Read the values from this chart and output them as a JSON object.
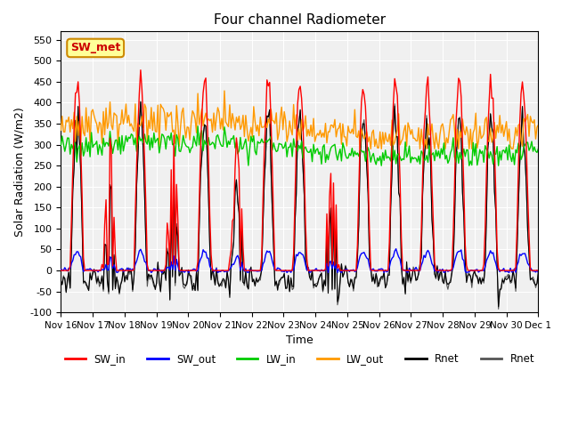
{
  "title": "Four channel Radiometer",
  "xlabel": "Time",
  "ylabel": "Solar Radiation (W/m2)",
  "ylim": [
    -100,
    570
  ],
  "n_days": 15,
  "x_tick_labels": [
    "Nov 16",
    "Nov 17",
    "Nov 18",
    "Nov 19",
    "Nov 20",
    "Nov 21",
    "Nov 22",
    "Nov 23",
    "Nov 24",
    "Nov 25",
    "Nov 26",
    "Nov 27",
    "Nov 28",
    "Nov 29",
    "Nov 30",
    "Dec 1"
  ],
  "yticks": [
    -100,
    -50,
    0,
    50,
    100,
    150,
    200,
    250,
    300,
    350,
    400,
    450,
    500,
    550
  ],
  "colors": {
    "SW_in": "#ff0000",
    "SW_out": "#0000ff",
    "LW_in": "#00cc00",
    "LW_out": "#ff9900",
    "Rnet_dark": "#000000",
    "Rnet_gray": "#555555"
  },
  "annotation_text": "SW_met",
  "annotation_color": "#cc0000",
  "annotation_bg": "#ffff99",
  "annotation_border": "#cc8800"
}
